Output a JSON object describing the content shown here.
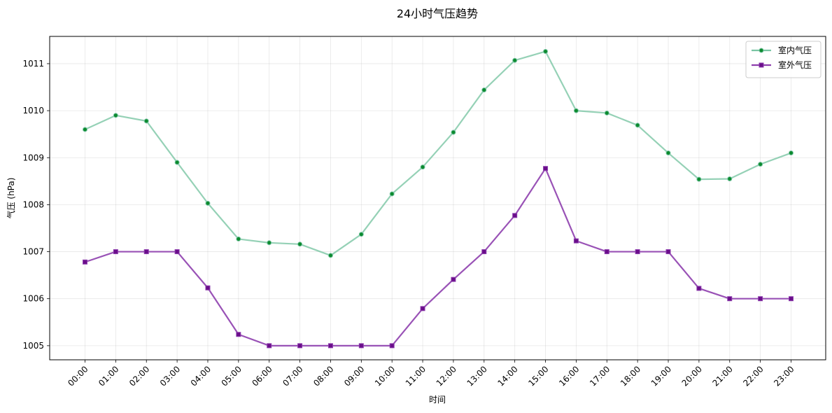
{
  "chart_data": {
    "type": "line",
    "title": "24小时气压趋势",
    "xlabel": "时间",
    "ylabel": "气压 (hPa)",
    "categories": [
      "00:00",
      "01:00",
      "02:00",
      "03:00",
      "04:00",
      "05:00",
      "06:00",
      "07:00",
      "08:00",
      "09:00",
      "10:00",
      "11:00",
      "12:00",
      "13:00",
      "14:00",
      "15:00",
      "16:00",
      "17:00",
      "18:00",
      "19:00",
      "20:00",
      "21:00",
      "22:00",
      "23:00"
    ],
    "ylim": [
      1004.7,
      1011.58
    ],
    "yticks": [
      1005,
      1006,
      1007,
      1008,
      1009,
      1010,
      1011
    ],
    "grid": true,
    "legend_position": "top-right",
    "series": [
      {
        "name": "室内气压",
        "color": "#7ac5a4",
        "marker_color": "#0c8a2e",
        "marker": "circle",
        "values": [
          1009.6,
          1009.9,
          1009.78,
          1008.9,
          1008.03,
          1007.27,
          1007.19,
          1007.16,
          1006.92,
          1007.37,
          1008.23,
          1008.8,
          1009.54,
          1010.44,
          1011.07,
          1011.26,
          1010.0,
          1009.95,
          1009.69,
          1009.1,
          1008.54,
          1008.55,
          1008.86,
          1009.1
        ]
      },
      {
        "name": "室外气压",
        "color": "#8e3fae",
        "marker_color": "#6a0d8a",
        "marker": "square",
        "values": [
          1006.78,
          1007.0,
          1007.0,
          1007.0,
          1006.23,
          1005.24,
          1005.0,
          1005.0,
          1005.0,
          1005.0,
          1005.0,
          1005.79,
          1006.41,
          1007.0,
          1007.77,
          1008.77,
          1007.23,
          1007.0,
          1007.0,
          1007.0,
          1006.22,
          1006.0,
          1006.0,
          1006.0
        ]
      }
    ]
  }
}
